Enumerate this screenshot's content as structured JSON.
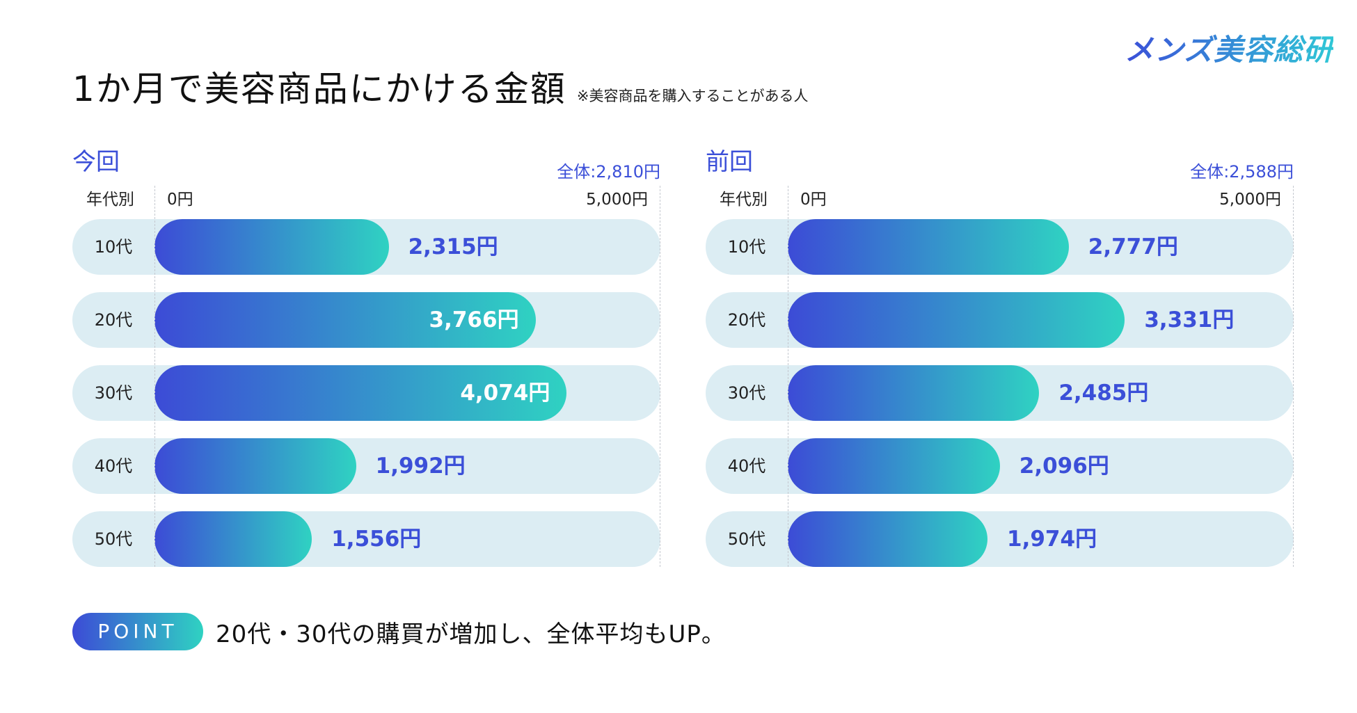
{
  "logo": "メンズ美容総研",
  "title": "1か月で美容商品にかける金額",
  "title_note": "※美容商品を購入することがある人",
  "axis": {
    "age_header": "年代別",
    "min_label": "0円",
    "max_label": "5,000円",
    "max_value": 5000
  },
  "point": {
    "badge": "POINT",
    "text": "20代・30代の購買が増加し、全体平均もUP。"
  },
  "colors": {
    "accent": "#3b4fd8",
    "bar_start": "#3c4bd6",
    "bar_end": "#2fd2c2",
    "track": "#dcedf3"
  },
  "chart_data": [
    {
      "type": "bar",
      "orientation": "horizontal",
      "title": "今回",
      "total_label": "全体:2,810円",
      "total": 2810,
      "categories": [
        "10代",
        "20代",
        "30代",
        "40代",
        "50代"
      ],
      "values": [
        2315,
        3766,
        4074,
        1992,
        1556
      ],
      "value_labels": [
        "2,315円",
        "3,766円",
        "4,074円",
        "1,992円",
        "1,556円"
      ],
      "xlim": [
        0,
        5000
      ]
    },
    {
      "type": "bar",
      "orientation": "horizontal",
      "title": "前回",
      "total_label": "全体:2,588円",
      "total": 2588,
      "categories": [
        "10代",
        "20代",
        "30代",
        "40代",
        "50代"
      ],
      "values": [
        2777,
        3331,
        2485,
        2096,
        1974
      ],
      "value_labels": [
        "2,777円",
        "3,331円",
        "2,485円",
        "2,096円",
        "1,974円"
      ],
      "xlim": [
        0,
        5000
      ]
    }
  ]
}
